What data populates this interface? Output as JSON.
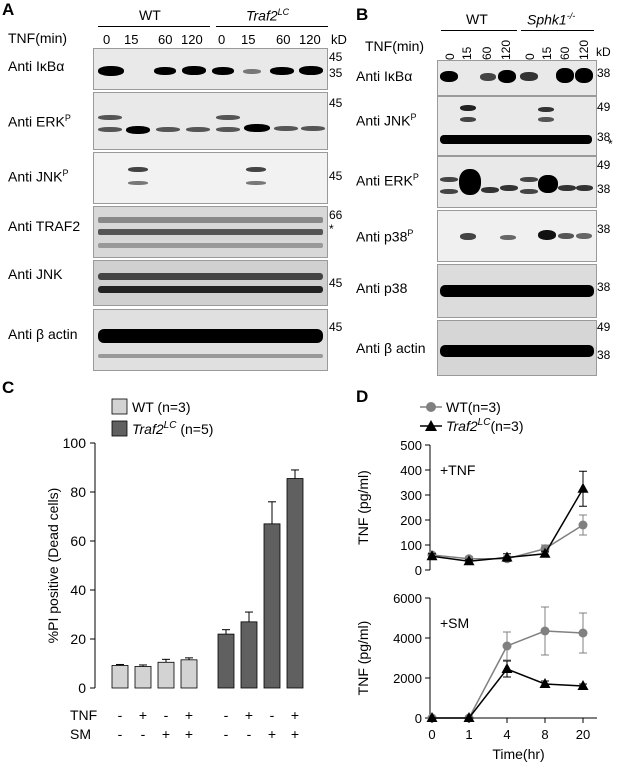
{
  "panels": {
    "A": "A",
    "B": "B",
    "C": "C",
    "D": "D"
  },
  "panelA": {
    "tnf_label": "TNF(min)",
    "groups": [
      "WT",
      "Traf2"
    ],
    "group2_sup": "LC",
    "times": [
      "0",
      "15",
      "60",
      "120",
      "0",
      "15",
      "60",
      "120"
    ],
    "kd": "kD",
    "rows": [
      {
        "label": "Anti IκBα",
        "markers": [
          "45",
          "35"
        ]
      },
      {
        "label": "Anti ERK",
        "sup": "P",
        "markers": [
          "45"
        ]
      },
      {
        "label": "Anti JNK",
        "sup": "P",
        "markers": [
          "45"
        ]
      },
      {
        "label": "Anti TRAF2",
        "markers": [
          "66",
          "*"
        ]
      },
      {
        "label": "Anti JNK",
        "markers": [
          "45"
        ]
      },
      {
        "label": "Anti β actin",
        "markers": [
          "45"
        ]
      }
    ]
  },
  "panelB": {
    "tnf_label": "TNF(min)",
    "groups": [
      "WT",
      "Sphk1"
    ],
    "group2_sup": "-/-",
    "times": [
      "0",
      "15",
      "60",
      "120",
      "0",
      "15",
      "60",
      "120"
    ],
    "kd": "kD",
    "rows": [
      {
        "label": "Anti IκBα",
        "markers": [
          "38"
        ]
      },
      {
        "label": "Anti JNK",
        "sup": "P",
        "markers": [
          "49",
          "38",
          "*"
        ]
      },
      {
        "label": "Anti ERK",
        "sup": "P",
        "markers": [
          "49",
          "38"
        ]
      },
      {
        "label": "Anti p38",
        "sup": "P",
        "markers": [
          "38"
        ]
      },
      {
        "label": "Anti p38",
        "markers": [
          "38"
        ]
      },
      {
        "label": "Anti β actin",
        "markers": [
          "49",
          "38"
        ]
      }
    ]
  },
  "chart_data": [
    {
      "type": "bar",
      "panel": "C",
      "ylabel": "%PI positive (Dead cells)",
      "ylim": [
        0,
        100
      ],
      "yticks": [
        "0",
        "20",
        "40",
        "60",
        "80",
        "100"
      ],
      "legend": [
        {
          "name": "WT (n=3)",
          "color": "#d3d3d3"
        },
        {
          "name": "Traf2",
          "sup": "LC",
          "suffix": " (n=5)",
          "color": "#606060"
        }
      ],
      "row_labels": [
        "TNF",
        "SM"
      ],
      "treatments": {
        "TNF": [
          "-",
          "+",
          "-",
          "+"
        ],
        "SM": [
          "-",
          "-",
          "+",
          "+"
        ]
      },
      "series": [
        {
          "name": "WT (n=3)",
          "values": [
            9.2,
            8.8,
            10.5,
            11.5
          ],
          "errors": [
            0.4,
            0.6,
            1.2,
            0.8
          ]
        },
        {
          "name": "Traf2LC (n=5)",
          "values": [
            22,
            27,
            67,
            85.5
          ],
          "errors": [
            1.8,
            4,
            9,
            3.5
          ]
        }
      ]
    },
    {
      "type": "line",
      "panel": "D",
      "xlabel": "Time(hr)",
      "x": [
        0,
        1,
        4,
        8,
        20
      ],
      "xticks": [
        "0",
        "1",
        "4",
        "8",
        "20"
      ],
      "legend": [
        {
          "name": "WT(n=3)",
          "color": "#808080",
          "marker": "circle"
        },
        {
          "name": "Traf2",
          "sup": "LC",
          "suffix": "(n=3)",
          "color": "#000000",
          "marker": "triangle"
        }
      ],
      "subplots": [
        {
          "annotation": "+TNF",
          "ylabel": "TNF (pg/ml)",
          "ylim": [
            0,
            500
          ],
          "yticks": [
            "0",
            "100",
            "200",
            "300",
            "400",
            "500"
          ],
          "series": [
            {
              "name": "WT(n=3)",
              "values": [
                60,
                45,
                45,
                85,
                180
              ],
              "errors": [
                8,
                8,
                10,
                15,
                40
              ]
            },
            {
              "name": "Traf2LC(n=3)",
              "values": [
                55,
                35,
                50,
                65,
                325
              ],
              "errors": [
                10,
                8,
                15,
                10,
                70
              ]
            }
          ]
        },
        {
          "annotation": "+SM",
          "ylabel": "TNF (pg/ml)",
          "ylim": [
            0,
            6000
          ],
          "yticks": [
            "0",
            "2000",
            "4000",
            "6000"
          ],
          "series": [
            {
              "name": "WT(n=3)",
              "values": [
                0,
                0,
                3600,
                4350,
                4250
              ],
              "errors": [
                0,
                0,
                700,
                1200,
                1000
              ]
            },
            {
              "name": "Traf2LC(n=3)",
              "values": [
                0,
                0,
                2450,
                1700,
                1600
              ],
              "errors": [
                0,
                0,
                400,
                150,
                100
              ]
            }
          ]
        }
      ]
    }
  ]
}
